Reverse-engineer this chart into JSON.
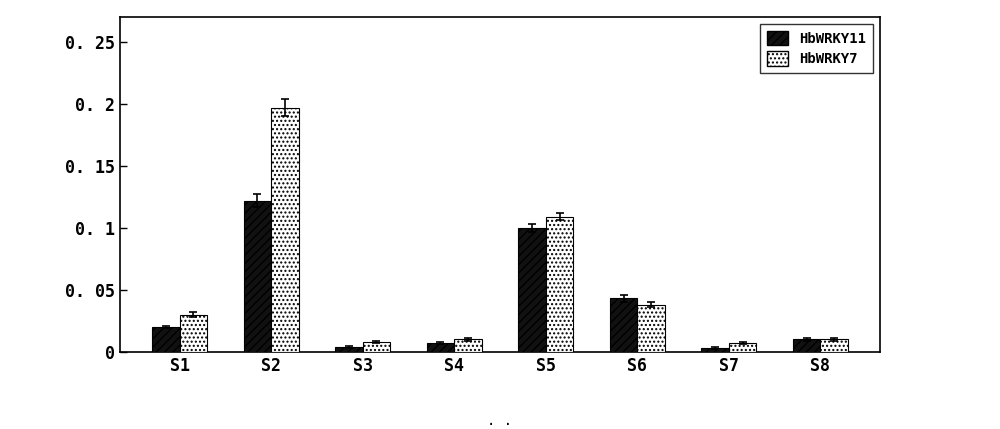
{
  "categories": [
    "S1",
    "S2",
    "S3",
    "S4",
    "S5",
    "S6",
    "S7",
    "S8"
  ],
  "series1_name": "HbWRKY11",
  "series2_name": "HbWRKY7",
  "series1_values": [
    0.02,
    0.122,
    0.004,
    0.007,
    0.1,
    0.043,
    0.003,
    0.01
  ],
  "series2_values": [
    0.03,
    0.197,
    0.008,
    0.01,
    0.109,
    0.038,
    0.007,
    0.01
  ],
  "series1_errors": [
    0.001,
    0.005,
    0.001,
    0.001,
    0.003,
    0.003,
    0.001,
    0.001
  ],
  "series2_errors": [
    0.002,
    0.007,
    0.001,
    0.001,
    0.003,
    0.002,
    0.001,
    0.001
  ],
  "ylim": [
    0,
    0.27
  ],
  "yticks": [
    0,
    0.05,
    0.1,
    0.15,
    0.2,
    0.25
  ],
  "ytick_labels": [
    "0",
    "0. 05",
    "0. 1",
    "0. 15",
    "0. 2",
    "0. 25"
  ],
  "bar_width": 0.3,
  "series1_hatch": "////",
  "series2_hatch": "....",
  "series1_facecolor": "#111111",
  "series2_facecolor": "#ffffff",
  "background_color": "#ffffff",
  "legend_fontsize": 10,
  "tick_fontsize": 12,
  "label_fontsize": 12,
  "figsize": [
    10.0,
    4.29
  ],
  "dpi": 100
}
